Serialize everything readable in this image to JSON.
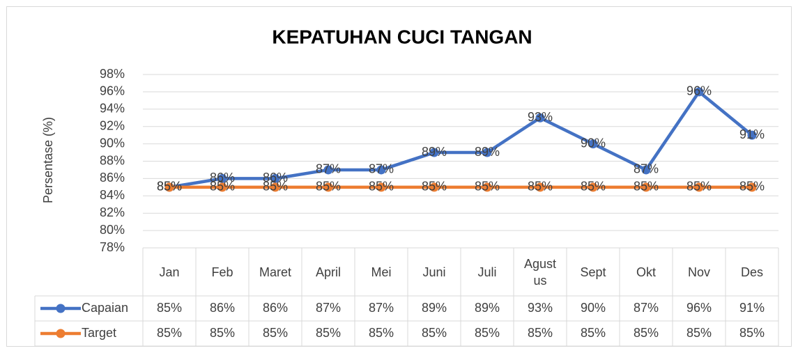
{
  "chart_data": {
    "type": "line",
    "title": "KEPATUHAN CUCI TANGAN",
    "y_label": "Persentase (%)",
    "categories": [
      "Jan",
      "Feb",
      "Maret",
      "April",
      "Mei",
      "Juni",
      "Juli",
      "Agustus",
      "Sept",
      "Okt",
      "Nov",
      "Des"
    ],
    "series": [
      {
        "name": "Capaian",
        "color": "#4472c4",
        "values": [
          85,
          86,
          86,
          87,
          87,
          89,
          89,
          93,
          90,
          87,
          96,
          91
        ],
        "value_labels": [
          "85%",
          "86%",
          "86%",
          "87%",
          "87%",
          "89%",
          "89%",
          "93%",
          "90%",
          "87%",
          "96%",
          "91%"
        ]
      },
      {
        "name": "Target",
        "color": "#ed7d31",
        "values": [
          85,
          85,
          85,
          85,
          85,
          85,
          85,
          85,
          85,
          85,
          85,
          85
        ],
        "value_labels": [
          "85%",
          "85%",
          "85%",
          "85%",
          "85%",
          "85%",
          "85%",
          "85%",
          "85%",
          "85%",
          "85%",
          "85%"
        ]
      }
    ],
    "ylim": [
      78,
      98
    ],
    "yticks": [
      {
        "value": 78,
        "label": "78%"
      },
      {
        "value": 80,
        "label": "80%"
      },
      {
        "value": 82,
        "label": "82%"
      },
      {
        "value": 84,
        "label": "84%"
      },
      {
        "value": 86,
        "label": "86%"
      },
      {
        "value": 88,
        "label": "88%"
      },
      {
        "value": 90,
        "label": "90%"
      },
      {
        "value": 92,
        "label": "92%"
      },
      {
        "value": 94,
        "label": "94%"
      },
      {
        "value": 96,
        "label": "96%"
      },
      {
        "value": 98,
        "label": "98%"
      }
    ],
    "grid": true
  }
}
